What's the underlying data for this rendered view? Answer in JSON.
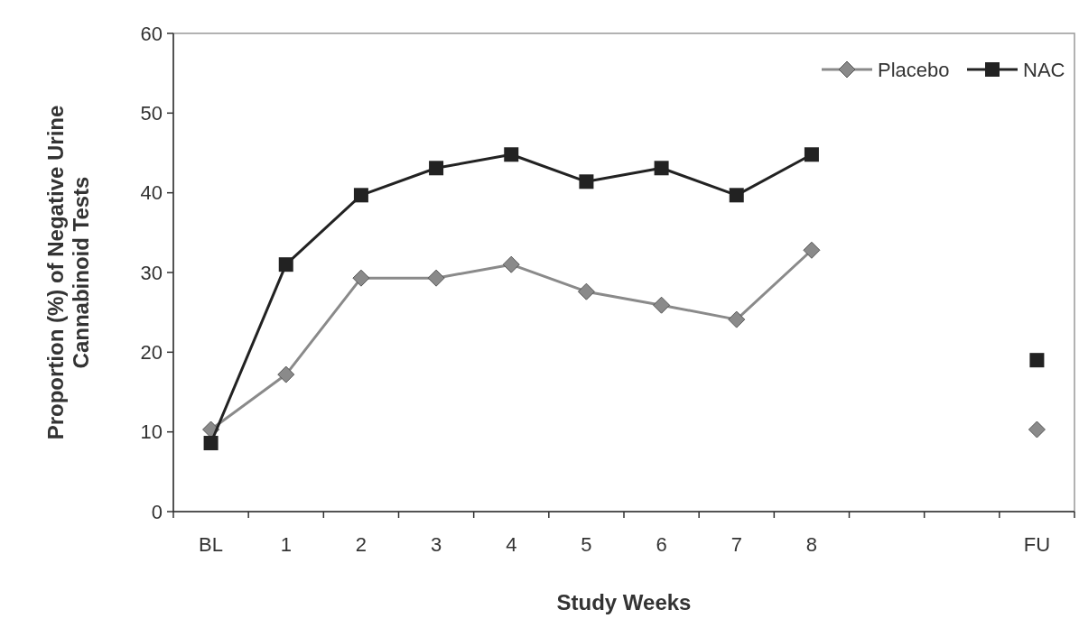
{
  "chart_data": {
    "type": "line",
    "xlabel": "Study Weeks",
    "ylabel": "Proportion (%) of Negative Urine\nCannabinoid Tests",
    "categories": [
      "BL",
      "1",
      "2",
      "3",
      "4",
      "5",
      "6",
      "7",
      "8",
      null,
      null,
      "FU"
    ],
    "series": [
      {
        "name": "Placebo",
        "color": "#8a8a8a",
        "marker": "diamond",
        "values": [
          10.3,
          17.2,
          29.3,
          29.3,
          31,
          27.6,
          25.9,
          24.1,
          32.8,
          null,
          null,
          10.3
        ]
      },
      {
        "name": "NAC",
        "color": "#222222",
        "marker": "square",
        "values": [
          8.6,
          31,
          39.7,
          43.1,
          44.8,
          41.4,
          43.1,
          39.7,
          44.8,
          null,
          null,
          19
        ]
      }
    ],
    "ylim": [
      0,
      60
    ],
    "yticks": [
      0,
      10,
      20,
      30,
      40,
      50,
      60
    ],
    "grid": false,
    "legend": "top right"
  }
}
